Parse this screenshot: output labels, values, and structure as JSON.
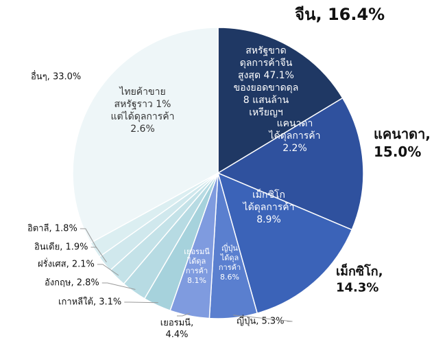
{
  "chart_data": {
    "type": "pie",
    "values": [
      16.4,
      15.0,
      14.3,
      5.3,
      4.4,
      3.1,
      2.8,
      2.1,
      1.9,
      1.8,
      33.0
    ],
    "value_labels": [
      "จีน, 16.4%",
      "แคนาดา,\n15.0%",
      "เม็กซิโก,\n14.3%",
      "ญี่ปุ่น, 5.3%",
      "เยอรมนี,\n4.4%",
      "เกาหลีใต้, 3.1%",
      "อังกฤษ, 2.8%",
      "ฝรั่งเศส, 2.1%",
      "อินเดีย, 1.9%",
      "อิตาลี, 1.8%",
      "อื่นๆ, 33.0%"
    ],
    "colors": [
      "#1f3864",
      "#2f519e",
      "#3b63b8",
      "#5a7fcf",
      "#7f9bdf",
      "#a6d2dc",
      "#b7dbe3",
      "#c4e2e8",
      "#d0e8ed",
      "#dbeef1",
      "#eef6f8"
    ],
    "annotations": [
      [
        "สหรัฐขาด",
        "ดุลการค้าจีน",
        "สูงสุด 47.1%",
        "ของยอดขาดดุล",
        "8 แสนล้าน",
        "เหรียญฯ"
      ],
      [
        "แคนาดา",
        "ได้ดุลการค้า",
        "2.2%"
      ],
      [
        "เม็กซิโก",
        "ได้ดุลการค้า",
        "8.9%"
      ],
      [
        "ญี่ปุ่น",
        "ได้ดุล",
        "การค้า",
        "8.6%"
      ],
      [
        "เยอรมนี",
        "ได้ดุล",
        "การค้า",
        "8.1%"
      ],
      [
        "ไทยค้าขาย",
        "สหรัฐราว 1%",
        "แต่ได้ดุลการค้า",
        "2.6%"
      ]
    ]
  }
}
